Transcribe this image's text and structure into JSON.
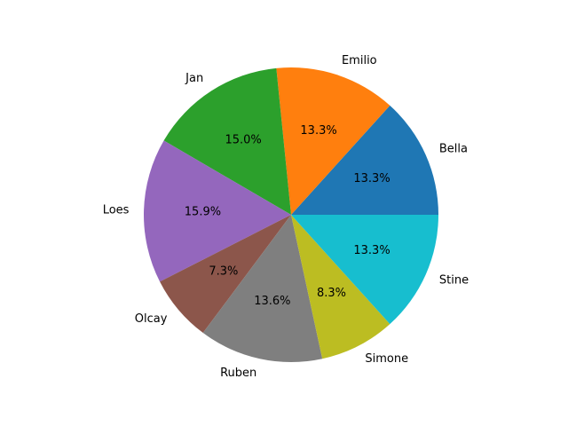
{
  "chart_data": {
    "type": "pie",
    "title": "",
    "categories": [
      "Bella",
      "Emilio",
      "Jan",
      "Loes",
      "Olcay",
      "Ruben",
      "Simone",
      "Stine"
    ],
    "values": [
      13.3,
      13.3,
      15.0,
      15.9,
      7.3,
      13.6,
      8.3,
      13.3
    ],
    "percent_labels": [
      "13.3%",
      "13.3%",
      "15.0%",
      "15.9%",
      "7.3%",
      "13.6%",
      "8.3%",
      "13.3%"
    ],
    "colors": [
      "#1f77b4",
      "#ff7f0e",
      "#2ca02c",
      "#9467bd",
      "#8c564b",
      "#7f7f7f",
      "#bcbd22",
      "#17becf"
    ],
    "start_angle_deg": 0,
    "direction": "counterclockwise",
    "legend": "none"
  }
}
